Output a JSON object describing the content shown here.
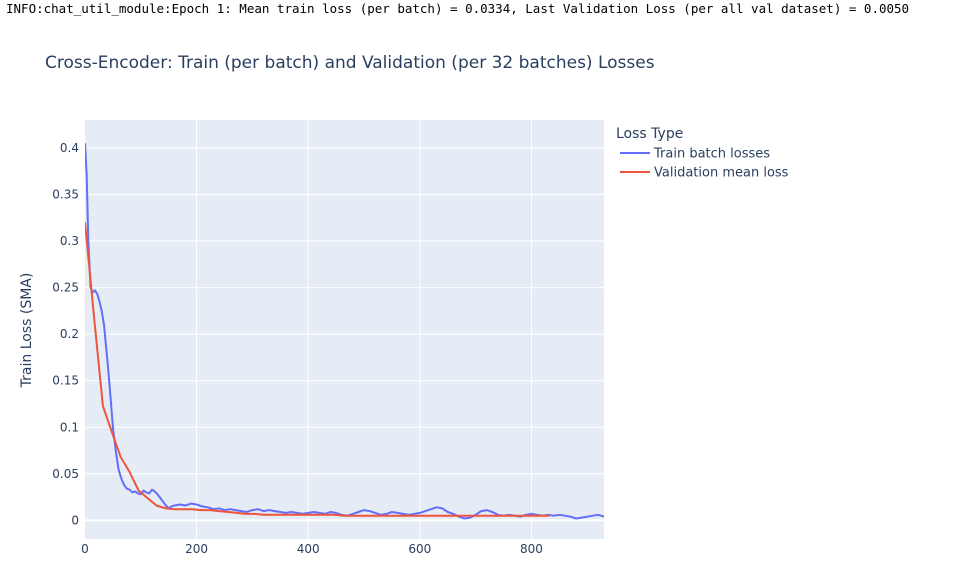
{
  "log_text": "INFO:chat_util_module:Epoch 1: Mean train loss (per batch) = 0.0334, Last Validation Loss (per all val dataset) = 0.0050",
  "chart_data": {
    "type": "line",
    "title": "Cross-Encoder: Train (per batch) and Validation (per 32 batches) Losses",
    "xlabel": "",
    "ylabel": "Train Loss (SMA)",
    "xlim": [
      0,
      930
    ],
    "ylim": [
      -0.02,
      0.43
    ],
    "x_ticks": [
      0,
      200,
      400,
      600,
      800
    ],
    "y_ticks": [
      0,
      0.05,
      0.1,
      0.15,
      0.2,
      0.25,
      0.3,
      0.35,
      0.4
    ],
    "y_tick_labels": [
      "0",
      "0.05",
      "0.1",
      "0.15",
      "0.2",
      "0.25",
      "0.3",
      "0.35",
      "0.4"
    ],
    "grid": true,
    "background": "#e5ecf6",
    "legend": {
      "title": "Loss Type",
      "placement": "right"
    },
    "series": [
      {
        "name": "Train batch losses",
        "color": "#636efa",
        "x": [
          0,
          3,
          6,
          10,
          14,
          18,
          22,
          26,
          30,
          34,
          38,
          42,
          46,
          50,
          55,
          60,
          65,
          70,
          75,
          80,
          85,
          90,
          95,
          100,
          105,
          110,
          115,
          120,
          125,
          130,
          135,
          140,
          145,
          150,
          155,
          160,
          170,
          180,
          190,
          200,
          210,
          220,
          230,
          240,
          250,
          260,
          270,
          280,
          290,
          300,
          310,
          320,
          330,
          340,
          350,
          360,
          370,
          380,
          390,
          400,
          410,
          420,
          430,
          440,
          450,
          460,
          470,
          480,
          490,
          500,
          510,
          520,
          530,
          540,
          550,
          560,
          570,
          580,
          590,
          600,
          610,
          620,
          630,
          640,
          650,
          660,
          670,
          680,
          690,
          700,
          710,
          720,
          730,
          740,
          750,
          760,
          770,
          780,
          790,
          800,
          810,
          820,
          830,
          840,
          850,
          860,
          870,
          880,
          890,
          900,
          910,
          920,
          930
        ],
        "y": [
          0.405,
          0.37,
          0.3,
          0.25,
          0.245,
          0.247,
          0.243,
          0.235,
          0.225,
          0.21,
          0.185,
          0.16,
          0.13,
          0.1,
          0.075,
          0.055,
          0.045,
          0.038,
          0.034,
          0.033,
          0.03,
          0.031,
          0.029,
          0.028,
          0.032,
          0.03,
          0.029,
          0.033,
          0.031,
          0.028,
          0.024,
          0.02,
          0.016,
          0.013,
          0.015,
          0.016,
          0.017,
          0.016,
          0.018,
          0.017,
          0.015,
          0.014,
          0.012,
          0.013,
          0.011,
          0.012,
          0.011,
          0.01,
          0.009,
          0.011,
          0.012,
          0.01,
          0.011,
          0.01,
          0.009,
          0.008,
          0.009,
          0.008,
          0.007,
          0.008,
          0.009,
          0.008,
          0.007,
          0.009,
          0.008,
          0.006,
          0.005,
          0.007,
          0.009,
          0.011,
          0.01,
          0.008,
          0.006,
          0.007,
          0.009,
          0.008,
          0.007,
          0.006,
          0.007,
          0.008,
          0.01,
          0.012,
          0.014,
          0.013,
          0.009,
          0.007,
          0.004,
          0.002,
          0.003,
          0.006,
          0.01,
          0.011,
          0.009,
          0.006,
          0.005,
          0.006,
          0.005,
          0.004,
          0.006,
          0.007,
          0.006,
          0.005,
          0.006,
          0.005,
          0.006,
          0.005,
          0.004,
          0.002,
          0.003,
          0.004,
          0.005,
          0.006,
          0.004
        ]
      },
      {
        "name": "Validation mean loss",
        "color": "#ef553b",
        "x": [
          0,
          16,
          32,
          48,
          64,
          80,
          96,
          112,
          128,
          144,
          160,
          176,
          192,
          208,
          224,
          240,
          256,
          272,
          288,
          304,
          320,
          336,
          352,
          368,
          384,
          400,
          416,
          432,
          448,
          464,
          480,
          496,
          512,
          528,
          544,
          560,
          576,
          592,
          608,
          624,
          640,
          656,
          672,
          688,
          704,
          720,
          736,
          752,
          768,
          784,
          800,
          816,
          832
        ],
        "y": [
          0.32,
          0.22,
          0.123,
          0.095,
          0.068,
          0.052,
          0.032,
          0.024,
          0.016,
          0.013,
          0.012,
          0.012,
          0.012,
          0.011,
          0.011,
          0.01,
          0.009,
          0.008,
          0.007,
          0.007,
          0.006,
          0.006,
          0.006,
          0.006,
          0.006,
          0.006,
          0.006,
          0.006,
          0.006,
          0.005,
          0.005,
          0.005,
          0.005,
          0.005,
          0.005,
          0.005,
          0.005,
          0.005,
          0.005,
          0.005,
          0.005,
          0.005,
          0.005,
          0.005,
          0.005,
          0.005,
          0.005,
          0.005,
          0.005,
          0.005,
          0.005,
          0.005,
          0.005
        ]
      }
    ]
  }
}
